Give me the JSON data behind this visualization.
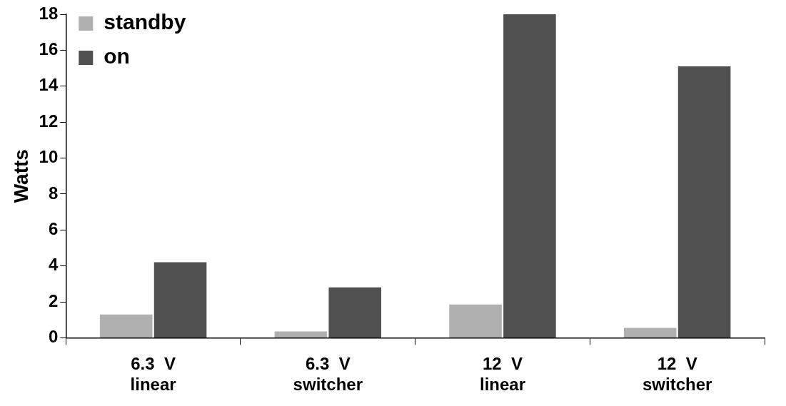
{
  "chart_data": {
    "type": "bar",
    "ylabel": "Watts",
    "categories": [
      "6.3  V\nlinear",
      "6.3  V\nswitcher",
      "12  V\nlinear",
      "12  V\nswitcher"
    ],
    "series": [
      {
        "name": "standby",
        "color": "#b0b0b0",
        "values": [
          1.3,
          0.35,
          1.85,
          0.55
        ]
      },
      {
        "name": "on",
        "color": "#505050",
        "values": [
          4.2,
          2.8,
          18,
          15.1
        ]
      }
    ],
    "ylim": [
      0,
      18
    ],
    "yticks": [
      0,
      2,
      4,
      6,
      8,
      10,
      12,
      14,
      16,
      18
    ],
    "grid": false,
    "legend": "top left"
  }
}
